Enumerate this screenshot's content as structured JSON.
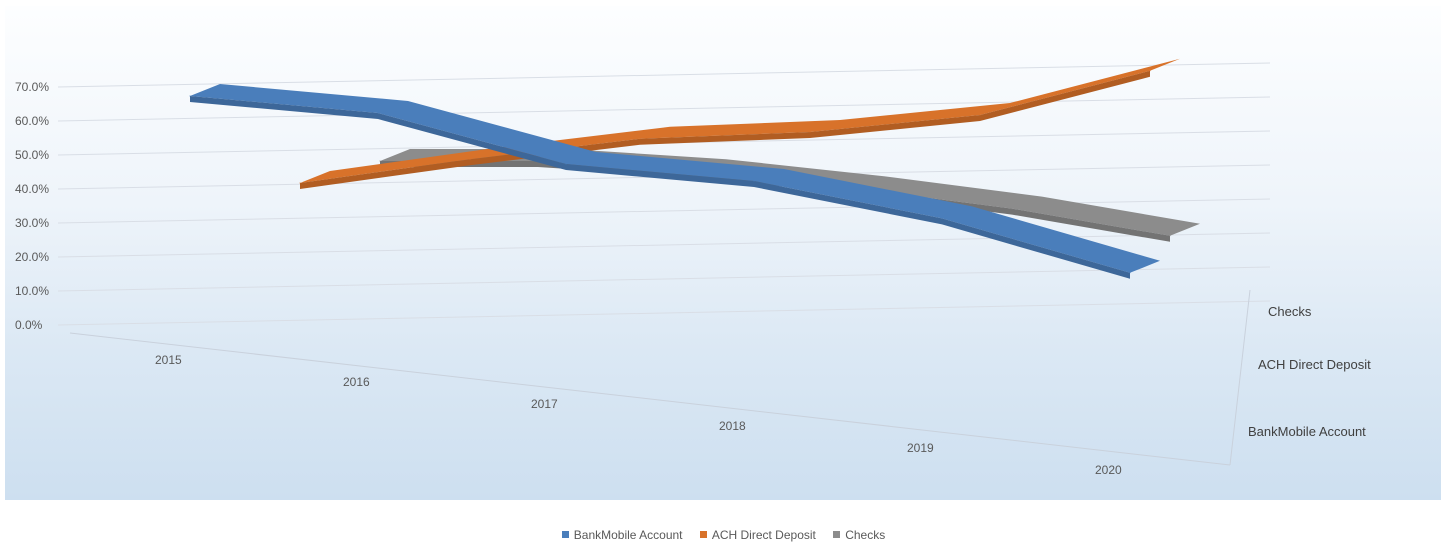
{
  "chart_data": {
    "type": "line",
    "style": "3d",
    "categories": [
      "2015",
      "2016",
      "2017",
      "2018",
      "2019",
      "2020"
    ],
    "y_ticks": [
      "0.0%",
      "10.0%",
      "20.0%",
      "30.0%",
      "40.0%",
      "50.0%",
      "60.0%",
      "70.0%"
    ],
    "ylim": [
      0,
      70
    ],
    "grid": true,
    "legend_position": "bottom",
    "series": [
      {
        "name": "BankMobile Account",
        "color": "#4a7ebb",
        "values": [
          60,
          55,
          40,
          35,
          24,
          8
        ]
      },
      {
        "name": "ACH Direct Deposit",
        "color": "#d8722a",
        "values": [
          30,
          37,
          43,
          45,
          50,
          63
        ]
      },
      {
        "name": "Checks",
        "color": "#8c8c8c",
        "values": [
          40,
          40,
          37,
          32,
          26,
          18
        ]
      }
    ],
    "depth_labels": [
      "Checks",
      "ACH Direct Deposit",
      "BankMobile Account"
    ]
  }
}
